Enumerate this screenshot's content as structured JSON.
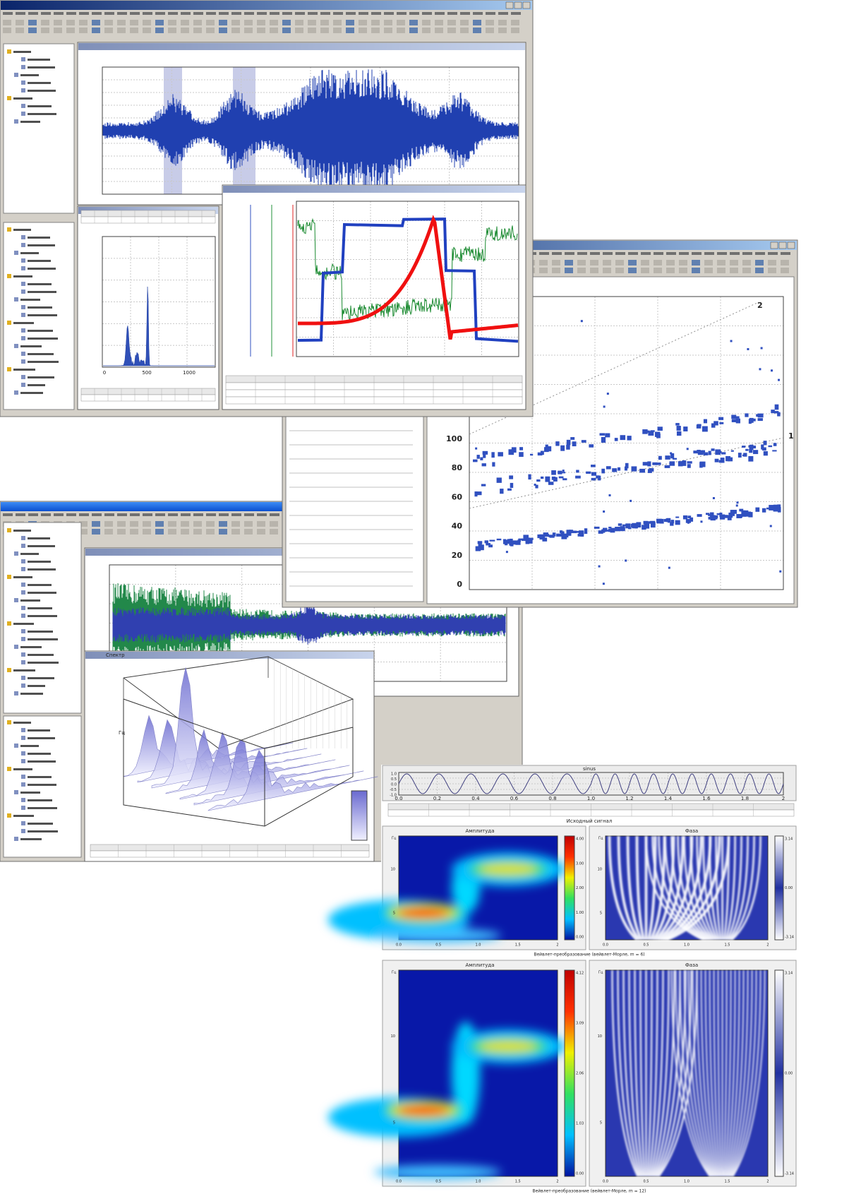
{
  "scatter": {
    "yticks": [
      "0",
      "20",
      "40",
      "60",
      "80",
      "100"
    ],
    "line_labels": [
      "1",
      "2"
    ]
  },
  "histogram": {
    "xticks": [
      "0",
      "500",
      "1000"
    ]
  },
  "spectrum": {
    "title": "Спектр",
    "axis_label": "Гц"
  },
  "wavelet": {
    "signal": {
      "title": "sinus",
      "xticks": [
        "0.0",
        "0.2",
        "0.4",
        "0.6",
        "0.8",
        "1.0",
        "1.2",
        "1.4",
        "1.6",
        "1.8",
        "2"
      ],
      "yticks": [
        "1.0",
        "0.5",
        "0.0",
        "-0.5",
        "-1.0"
      ],
      "caption": "Исходный сигнал"
    },
    "freq_label": "Гц",
    "panels": [
      {
        "amplitude_title": "Амплитуда",
        "phase_title": "Фаза",
        "yticks": [
          "5",
          "10"
        ],
        "xticks": [
          "0.0",
          "0.5",
          "1.0",
          "1.5",
          "2"
        ],
        "amp_scale": [
          "4.00",
          "3.00",
          "2.00",
          "1.00",
          "0.00"
        ],
        "phase_scale": [
          "3.14",
          "0.00",
          "-3.14"
        ],
        "caption": "Вейвлет-преобразование (вейвлет-Морле, m = 6)"
      },
      {
        "amplitude_title": "Амплитуда",
        "phase_title": "Фаза",
        "yticks": [
          "5",
          "10"
        ],
        "xticks": [
          "0.0",
          "0.5",
          "1.0",
          "1.5",
          "2"
        ],
        "amp_scale": [
          "4.12",
          "3.09",
          "2.06",
          "1.03",
          "0.00"
        ],
        "phase_scale": [
          "3.14",
          "0.00",
          "-3.14"
        ],
        "caption": "Вейвлет-преобразование (вейвлет-Морле, m = 12)"
      }
    ]
  }
}
